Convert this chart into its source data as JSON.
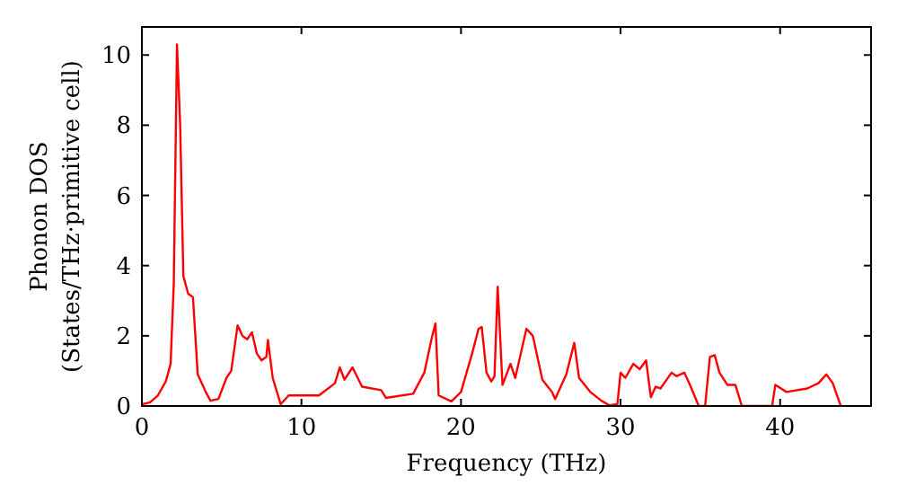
{
  "chart_data": {
    "type": "line",
    "xlabel": "Frequency (THz)",
    "ylabel": "Phonon DOS\n(States/THz·primitive cell)",
    "xlim": [
      0,
      45.7
    ],
    "ylim": [
      0,
      10.8
    ],
    "xticks": [
      0,
      10,
      20,
      30,
      40
    ],
    "yticks": [
      0,
      2,
      4,
      6,
      8,
      10
    ],
    "grid": false,
    "marker": "none",
    "line_style": "solid",
    "series": [
      {
        "color": "#ff0000",
        "x": [
          0,
          0.5,
          1,
          1.5,
          1.8,
          2.0,
          2.2,
          2.4,
          2.6,
          2.9,
          3.2,
          3.5,
          4.0,
          4.3,
          4.8,
          5.3,
          5.6,
          6.0,
          6.3,
          6.6,
          6.9,
          7.2,
          7.5,
          7.8,
          7.9,
          8.2,
          8.7,
          9.2,
          10,
          11.1,
          12.1,
          12.4,
          12.7,
          13.2,
          13.8,
          15.0,
          15.3,
          17.0,
          17.7,
          18.2,
          18.4,
          18.6,
          19.4,
          20.0,
          20.7,
          21.1,
          21.3,
          21.6,
          21.9,
          22.1,
          22.3,
          22.6,
          23.1,
          23.4,
          24.1,
          24.5,
          25.1,
          25.7,
          25.9,
          26.6,
          27.1,
          27.4,
          28.1,
          28.8,
          29.3,
          29.8,
          30.0,
          30.3,
          30.8,
          31.2,
          31.6,
          31.9,
          32.2,
          32.5,
          33.2,
          33.5,
          34.0,
          34.4,
          34.9,
          35.3,
          35.6,
          35.9,
          36.2,
          36.7,
          37.2,
          37.6,
          39.5,
          39.7,
          40.4,
          41.7,
          42.4,
          42.9,
          43.3,
          43.8
        ],
        "values": [
          0.05,
          0.1,
          0.3,
          0.7,
          1.2,
          3.5,
          10.3,
          8,
          3.7,
          3.2,
          3.1,
          0.9,
          0.4,
          0.15,
          0.2,
          0.8,
          1.0,
          2.3,
          2.0,
          1.9,
          2.1,
          1.5,
          1.3,
          1.4,
          1.88,
          0.8,
          0.05,
          0.3,
          0.3,
          0.3,
          0.65,
          1.1,
          0.75,
          1.1,
          0.55,
          0.45,
          0.23,
          0.35,
          0.95,
          2.0,
          2.35,
          0.3,
          0.13,
          0.4,
          1.5,
          2.2,
          2.25,
          0.95,
          0.7,
          0.85,
          3.4,
          0.6,
          1.2,
          0.8,
          2.2,
          2.0,
          0.75,
          0.4,
          0.2,
          0.9,
          1.8,
          0.8,
          0.4,
          0.15,
          0.02,
          0.05,
          0.95,
          0.8,
          1.2,
          1.05,
          1.3,
          0.25,
          0.55,
          0.5,
          0.95,
          0.85,
          0.95,
          0.55,
          0,
          0,
          1.4,
          1.45,
          0.95,
          0.6,
          0.6,
          0,
          0,
          0.6,
          0.4,
          0.5,
          0.65,
          0.9,
          0.65,
          0
        ]
      }
    ]
  }
}
